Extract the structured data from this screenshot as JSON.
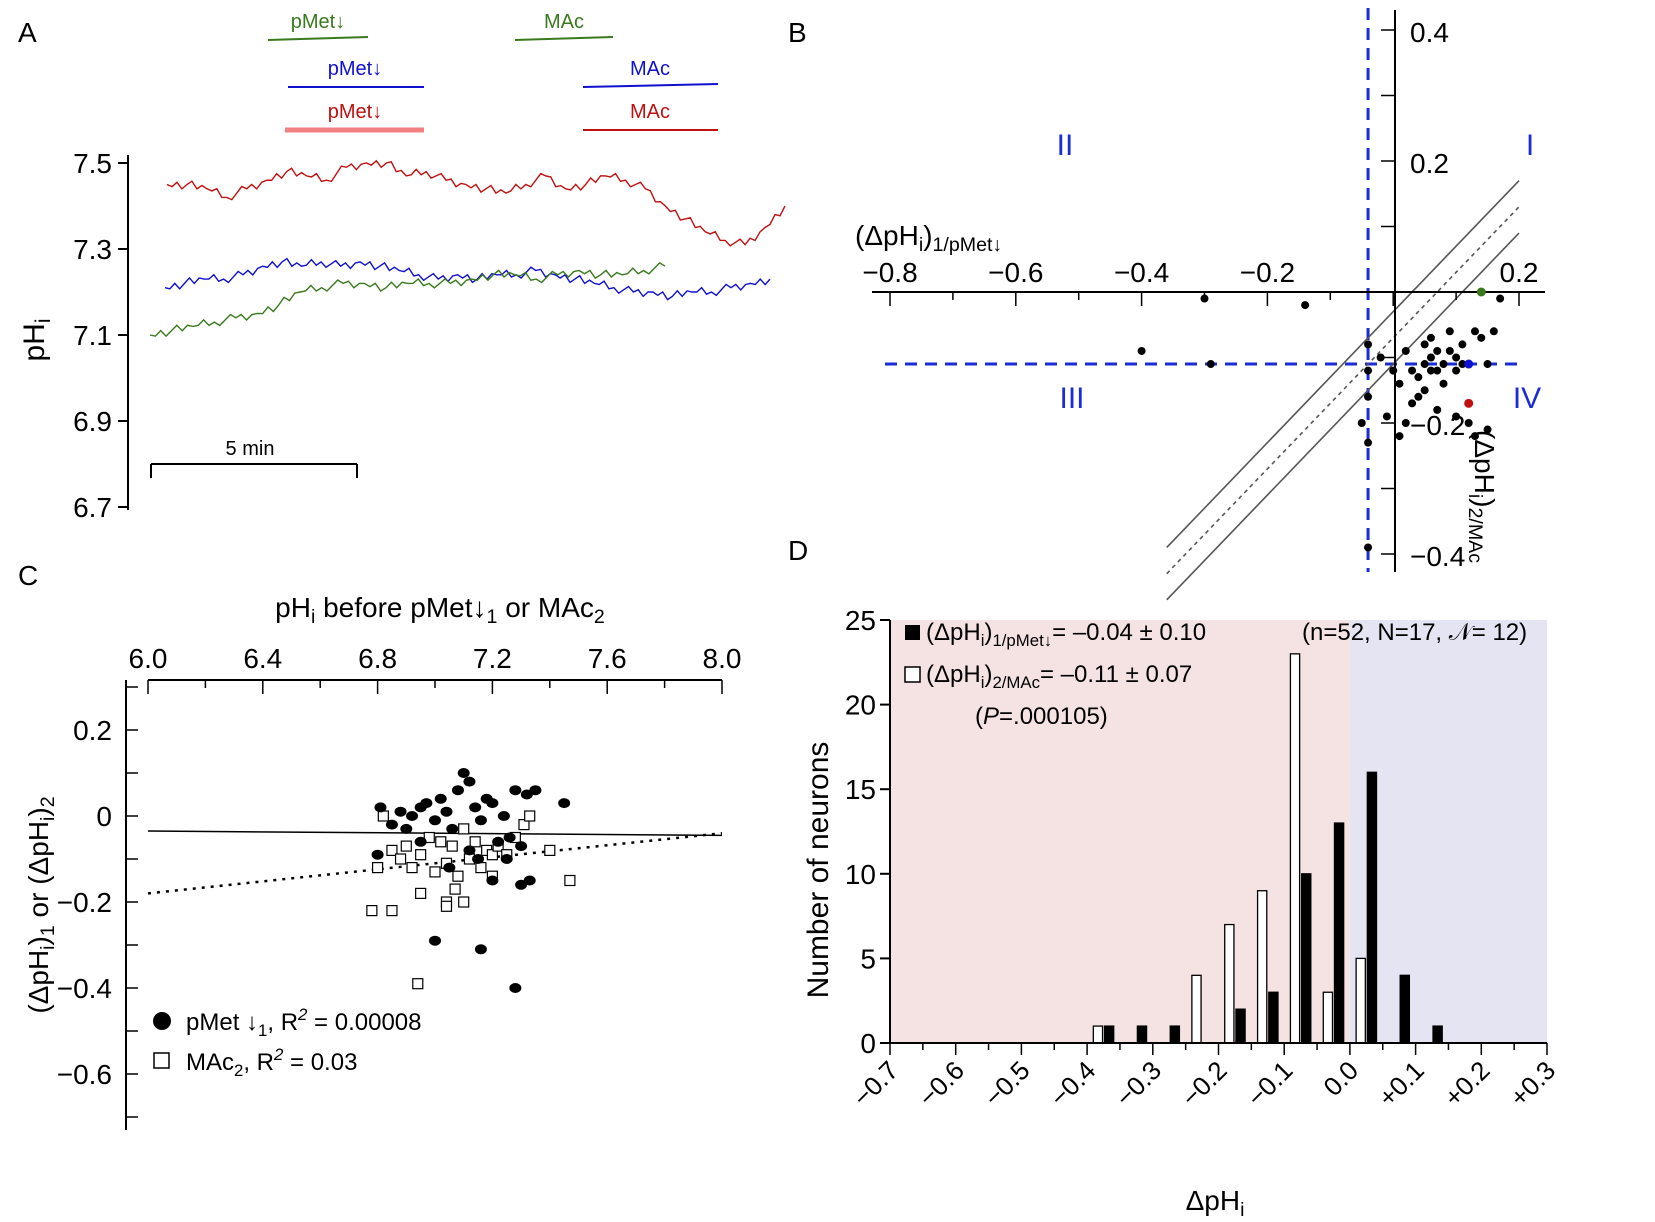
{
  "panels": {
    "A": {
      "letter": "A",
      "ylabel": "pH",
      "ylabel_sub": "i",
      "scalebar_label": "5 min",
      "bars": {
        "green": {
          "pmet": "pMet↓",
          "mac": "MAc"
        },
        "blue": {
          "pmet": "pMet↓",
          "mac": "MAc"
        },
        "red": {
          "pmet": "pMet↓",
          "mac": "MAc"
        }
      }
    },
    "B": {
      "letter": "B",
      "quadrants": {
        "q1": "I",
        "q2": "II",
        "q3": "III",
        "q4": "IV"
      },
      "xlabel": "(ΔpH",
      "xlabel_sub1": "i",
      "xlabel_close": ")",
      "xlabel_sub2": "1/pMet↓",
      "ylabel": "(ΔpH",
      "ylabel_sub1": "i",
      "ylabel_close": ")",
      "ylabel_sub2": "2/MAc"
    },
    "C": {
      "letter": "C",
      "xlabel_pre": "pH",
      "xlabel_sub": "i",
      "xlabel_post": " before pMet↓",
      "xlabel_sub1": "1",
      "xlabel_mid": " or MAc",
      "xlabel_sub2": "2",
      "ylabel_a": "(ΔpH",
      "ylabel_b": ")",
      "ylabel_c": " or (ΔpH",
      "ylabel_d": ")",
      "ylabel_i": "i",
      "ylabel_1": "1",
      "ylabel_2": "2",
      "legend": {
        "pmet_pre": "pMet ↓",
        "pmet_sub": "1",
        "pmet_post": ", R",
        "pmet_sup": "2",
        "pmet_val": " = 0.00008",
        "mac_pre": "MAc",
        "mac_sub": "2",
        "mac_post": ", R",
        "mac_sup": "2",
        "mac_val": " = 0.03"
      }
    },
    "D": {
      "letter": "D",
      "legend1_a": "(ΔpH",
      "legend1_sub_i": "i",
      "legend1_b": ")",
      "legend1_sub": "1/pMet↓",
      "legend1_val": "= –0.04 ± 0.10",
      "legend2_a": "(ΔpH",
      "legend2_sub_i": "i",
      "legend2_b": ")",
      "legend2_sub": "2/MAc",
      "legend2_val": "= –0.11 ± 0.07",
      "pvalue_open": "(",
      "pvalue_p": "P",
      "pvalue_rest": "=.000105)",
      "counts": "(n=52, N=17, 𝒩= 12)",
      "ylabel": "Number of neurons",
      "xlabel": "ΔpH",
      "xlabel_sub": "i"
    }
  },
  "colors": {
    "green": "#3a7a1e",
    "blue": "#1010d0",
    "red": "#c01010",
    "quadline": "#1a2bd8",
    "pink": "#f5e3e3",
    "lavender": "#e4e4f3",
    "redbar": "#f28080"
  },
  "chart_data": [
    {
      "panel": "A",
      "type": "line",
      "ylabel": "pHi",
      "ylim": [
        6.7,
        7.55
      ],
      "yticks": [
        "7.5",
        "7.3",
        "7.1",
        "6.9",
        "6.7"
      ],
      "xlabel": "time (scale bar 5 min)",
      "series": [
        {
          "name": "red",
          "x": [
            0,
            1,
            2,
            3,
            4,
            5,
            6,
            7,
            8,
            9,
            10,
            11,
            12,
            13,
            14,
            15,
            16,
            17,
            18,
            19,
            20,
            21,
            22,
            23,
            24,
            25,
            26,
            27,
            28,
            29,
            30,
            31
          ],
          "values": [
            7.45,
            7.45,
            7.44,
            7.42,
            7.44,
            7.46,
            7.48,
            7.47,
            7.46,
            7.49,
            7.5,
            7.5,
            7.47,
            7.48,
            7.46,
            7.45,
            7.44,
            7.43,
            7.45,
            7.47,
            7.44,
            7.45,
            7.47,
            7.46,
            7.44,
            7.4,
            7.37,
            7.34,
            7.32,
            7.31,
            7.35,
            7.4
          ]
        },
        {
          "name": "blue",
          "x": [
            0,
            1,
            2,
            3,
            4,
            5,
            6,
            7,
            8,
            9,
            10,
            11,
            12,
            13,
            14,
            15,
            16,
            17,
            18,
            19,
            20,
            21,
            22,
            23,
            24,
            25,
            26,
            27,
            28,
            29,
            30,
            31
          ],
          "values": [
            7.21,
            7.22,
            7.23,
            7.23,
            7.24,
            7.26,
            7.27,
            7.26,
            7.27,
            7.26,
            7.27,
            7.26,
            7.25,
            7.24,
            7.23,
            7.24,
            7.23,
            7.24,
            7.24,
            7.25,
            7.24,
            7.23,
            7.22,
            7.21,
            7.2,
            7.2,
            7.19,
            7.2,
            7.2,
            7.21,
            7.22,
            7.23
          ]
        },
        {
          "name": "green",
          "x": [
            0,
            1,
            2,
            3,
            4,
            5,
            6,
            7,
            8,
            9,
            10,
            11,
            12,
            13,
            14,
            15,
            16,
            17,
            18,
            19,
            20,
            21,
            22,
            23,
            24
          ],
          "values": [
            7.1,
            7.11,
            7.12,
            7.13,
            7.14,
            7.15,
            7.17,
            7.2,
            7.21,
            7.22,
            7.22,
            7.21,
            7.22,
            7.22,
            7.22,
            7.23,
            7.24,
            7.24,
            7.23,
            7.24,
            7.25,
            7.24,
            7.24,
            7.25,
            7.26
          ]
        }
      ]
    },
    {
      "panel": "B",
      "type": "scatter",
      "xlabel": "(ΔpHi)1/pMet↓",
      "ylabel": "(ΔpHi)2/MAc",
      "xlim": [
        -0.8,
        0.2
      ],
      "ylim": [
        -0.4,
        0.4
      ],
      "xticks": [
        "−0.8",
        "−0.6",
        "−0.4",
        "−0.2",
        "0.2"
      ],
      "yticks": [
        "0.4",
        "0.2",
        "−0.2",
        "−0.4"
      ],
      "quadrant_lines": {
        "x": -0.04,
        "y": -0.11
      },
      "points": [
        {
          "x": -0.4,
          "y": -0.09
        },
        {
          "x": -0.3,
          "y": -0.01
        },
        {
          "x": -0.29,
          "y": -0.11
        },
        {
          "x": -0.14,
          "y": -0.02
        },
        {
          "x": -0.04,
          "y": -0.08
        },
        {
          "x": -0.04,
          "y": -0.12
        },
        {
          "x": -0.04,
          "y": -0.16
        },
        {
          "x": -0.05,
          "y": -0.2
        },
        {
          "x": -0.04,
          "y": -0.23
        },
        {
          "x": -0.02,
          "y": -0.1
        },
        {
          "x": -0.01,
          "y": -0.19
        },
        {
          "x": 0.0,
          "y": -0.12
        },
        {
          "x": 0.01,
          "y": -0.22
        },
        {
          "x": 0.01,
          "y": -0.14
        },
        {
          "x": 0.02,
          "y": -0.09
        },
        {
          "x": 0.02,
          "y": -0.2
        },
        {
          "x": 0.03,
          "y": -0.12
        },
        {
          "x": 0.03,
          "y": -0.17
        },
        {
          "x": 0.04,
          "y": -0.13
        },
        {
          "x": 0.04,
          "y": -0.16
        },
        {
          "x": 0.05,
          "y": -0.08
        },
        {
          "x": 0.05,
          "y": -0.11
        },
        {
          "x": 0.05,
          "y": -0.15
        },
        {
          "x": 0.06,
          "y": -0.1
        },
        {
          "x": 0.06,
          "y": -0.12
        },
        {
          "x": 0.06,
          "y": -0.07
        },
        {
          "x": 0.07,
          "y": -0.12
        },
        {
          "x": 0.07,
          "y": -0.09
        },
        {
          "x": 0.07,
          "y": -0.18
        },
        {
          "x": 0.08,
          "y": -0.11
        },
        {
          "x": 0.08,
          "y": -0.14
        },
        {
          "x": 0.09,
          "y": -0.06
        },
        {
          "x": 0.09,
          "y": -0.09
        },
        {
          "x": 0.1,
          "y": -0.1
        },
        {
          "x": 0.1,
          "y": -0.12
        },
        {
          "x": 0.1,
          "y": -0.19
        },
        {
          "x": 0.11,
          "y": -0.08
        },
        {
          "x": 0.11,
          "y": -0.11
        },
        {
          "x": 0.12,
          "y": -0.2
        },
        {
          "x": 0.13,
          "y": -0.22
        },
        {
          "x": 0.13,
          "y": -0.06
        },
        {
          "x": 0.14,
          "y": -0.07
        },
        {
          "x": 0.15,
          "y": -0.11
        },
        {
          "x": 0.15,
          "y": -0.21
        },
        {
          "x": 0.16,
          "y": -0.06
        },
        {
          "x": 0.17,
          "y": -0.01
        },
        {
          "x": -0.04,
          "y": -0.39
        }
      ],
      "highlight": [
        {
          "name": "green",
          "x": 0.14,
          "y": 0.0
        },
        {
          "name": "blue",
          "x": 0.12,
          "y": -0.11
        },
        {
          "name": "red",
          "x": 0.12,
          "y": -0.17
        }
      ],
      "regression": {
        "slope": 1.0,
        "intercept": -0.07,
        "ci_lower": -0.11,
        "ci_upper": -0.03
      }
    },
    {
      "panel": "C",
      "type": "scatter",
      "xlabel": "pHi before pMet↓1 or MAc2",
      "ylabel": "(ΔpHi)1 or (ΔpHi)2",
      "xlim": [
        6.0,
        8.0
      ],
      "ylim": [
        -0.7,
        0.3
      ],
      "xticks": [
        "6.0",
        "6.4",
        "6.8",
        "7.2",
        "7.6",
        "8.0"
      ],
      "yticks": [
        "0.2",
        "0",
        "−0.2",
        "−0.4",
        "−0.6"
      ],
      "series": [
        {
          "name": "pMet ↓1",
          "r2": 8e-05,
          "fit": {
            "x": [
              6.0,
              8.0
            ],
            "y": [
              -0.035,
              -0.045
            ]
          },
          "points": [
            [
              6.81,
              0.02
            ],
            [
              6.85,
              -0.02
            ],
            [
              6.88,
              0.01
            ],
            [
              6.9,
              -0.03
            ],
            [
              6.92,
              0.0
            ],
            [
              6.95,
              0.02
            ],
            [
              6.97,
              0.03
            ],
            [
              7.0,
              -0.01
            ],
            [
              7.02,
              0.04
            ],
            [
              7.04,
              0.01
            ],
            [
              7.06,
              -0.03
            ],
            [
              7.08,
              0.06
            ],
            [
              7.1,
              0.1
            ],
            [
              7.12,
              0.08
            ],
            [
              7.14,
              0.02
            ],
            [
              7.16,
              -0.01
            ],
            [
              7.18,
              0.04
            ],
            [
              7.2,
              0.03
            ],
            [
              7.22,
              -0.06
            ],
            [
              7.24,
              0.0
            ],
            [
              7.26,
              -0.05
            ],
            [
              7.28,
              0.06
            ],
            [
              7.3,
              -0.07
            ],
            [
              7.32,
              0.05
            ],
            [
              7.35,
              0.06
            ],
            [
              7.45,
              0.03
            ],
            [
              6.8,
              -0.09
            ],
            [
              6.95,
              -0.06
            ],
            [
              7.05,
              -0.12
            ],
            [
              7.12,
              -0.08
            ],
            [
              7.15,
              -0.1
            ],
            [
              7.2,
              -0.15
            ],
            [
              7.25,
              -0.1
            ],
            [
              7.3,
              -0.16
            ],
            [
              7.33,
              -0.15
            ],
            [
              7.0,
              -0.29
            ],
            [
              7.16,
              -0.31
            ],
            [
              7.28,
              -0.4
            ]
          ]
        },
        {
          "name": "MAc2",
          "r2": 0.03,
          "fit": {
            "x": [
              6.0,
              8.0
            ],
            "y": [
              -0.18,
              -0.04
            ]
          },
          "points": [
            [
              6.8,
              -0.12
            ],
            [
              6.82,
              0.0
            ],
            [
              6.85,
              -0.08
            ],
            [
              6.88,
              -0.1
            ],
            [
              6.9,
              -0.07
            ],
            [
              6.92,
              -0.12
            ],
            [
              6.95,
              -0.09
            ],
            [
              6.98,
              -0.05
            ],
            [
              7.0,
              -0.13
            ],
            [
              7.02,
              -0.06
            ],
            [
              7.04,
              -0.11
            ],
            [
              7.06,
              -0.07
            ],
            [
              7.08,
              -0.14
            ],
            [
              7.1,
              -0.03
            ],
            [
              7.12,
              -0.1
            ],
            [
              7.14,
              -0.06
            ],
            [
              7.16,
              -0.12
            ],
            [
              7.18,
              -0.08
            ],
            [
              7.2,
              -0.09
            ],
            [
              7.22,
              -0.07
            ],
            [
              7.25,
              -0.09
            ],
            [
              7.28,
              -0.05
            ],
            [
              7.31,
              -0.02
            ],
            [
              7.33,
              0.0
            ],
            [
              7.4,
              -0.08
            ],
            [
              7.47,
              -0.15
            ],
            [
              6.78,
              -0.22
            ],
            [
              6.85,
              -0.22
            ],
            [
              6.95,
              -0.18
            ],
            [
              7.04,
              -0.2
            ],
            [
              7.04,
              -0.21
            ],
            [
              7.07,
              -0.17
            ],
            [
              7.1,
              -0.2
            ],
            [
              7.2,
              -0.14
            ],
            [
              6.94,
              -0.39
            ]
          ]
        }
      ]
    },
    {
      "panel": "D",
      "type": "bar",
      "xlabel": "ΔpHi",
      "ylabel": "Number of neurons",
      "ylim": [
        0,
        25
      ],
      "yticks": [
        "0",
        "5",
        "10",
        "15",
        "20",
        "25"
      ],
      "xticks": [
        "−0.7",
        "−0.6",
        "−0.5",
        "−0.4",
        "−0.3",
        "−0.2",
        "−0.1",
        "0.0",
        "+0.1",
        "+0.2",
        "+0.3"
      ],
      "bin_centers": [
        -0.375,
        -0.325,
        -0.275,
        -0.225,
        -0.175,
        -0.125,
        -0.075,
        -0.025,
        0.025,
        0.075,
        0.125
      ],
      "series": [
        {
          "name": "(ΔpHi)1/pMet↓",
          "fill": "black",
          "values": [
            1,
            1,
            1,
            0,
            2,
            3,
            10,
            13,
            16,
            4,
            1
          ]
        },
        {
          "name": "(ΔpHi)2/MAc",
          "fill": "white",
          "values": [
            1,
            0,
            0,
            4,
            7,
            9,
            23,
            3,
            5,
            0,
            0
          ]
        }
      ]
    }
  ]
}
